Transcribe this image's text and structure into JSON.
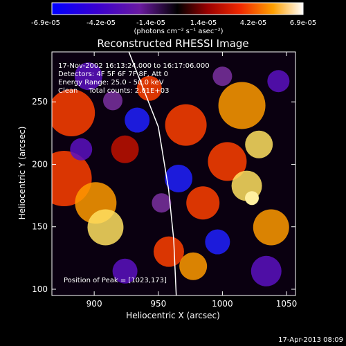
{
  "colorbar": {
    "tick_labels": [
      "-6.9e-05",
      "-4.2e-05",
      "-1.4e-05",
      "1.4e-05",
      "4.2e-05",
      "6.9e-05"
    ],
    "unit_label": "(photons cm⁻² s⁻¹ asec⁻²)",
    "range": [
      -6.9e-05,
      6.9e-05
    ],
    "colors": [
      "#0000ff",
      "#3a00c0",
      "#6a1aa0",
      "#000000",
      "#8a0000",
      "#e02000",
      "#ff8000",
      "#ffff60",
      "#ffffff"
    ]
  },
  "chart_data": {
    "type": "heatmap",
    "title": "Reconstructed RHESSI Image",
    "xlabel": "Heliocentric X (arcsec)",
    "ylabel": "Heliocentric Y (arcsec)",
    "xlim": [
      867,
      1057
    ],
    "ylim": [
      95,
      290
    ],
    "x_ticks": [
      900,
      950,
      1000,
      1050
    ],
    "y_ticks": [
      100,
      150,
      200,
      250
    ],
    "annotations": [
      "17-Nov-2002 16:13:24.000 to 16:17:06.000",
      "Detectors: 4F 5F 6F 7F 8F, Att 0",
      "Energy Range: 25.0 - 50.0 keV",
      "Clean     Total counts: 2.01E+03"
    ],
    "peak_label": "Position of Peak = [1023,173]",
    "peak": [
      1023,
      173
    ],
    "limb_line": [
      [
        927,
        290
      ],
      [
        950,
        230
      ],
      [
        958,
        180
      ],
      [
        962,
        140
      ],
      [
        964,
        95
      ]
    ]
  },
  "footer": {
    "timestamp": "17-Apr-2013 08:09"
  }
}
